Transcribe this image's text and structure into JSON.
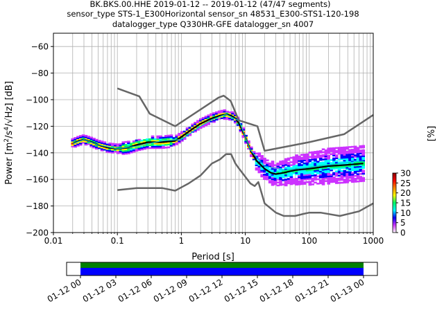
{
  "title_lines": [
    "BK.BKS.00.HHE   2019-01-12 -- 2019-01-12  (47/47 segments)",
    "sensor_type STS-1_E300Horizontal sensor_sn 48531_E300-STS1-120-198",
    "datalogger_type Q330HR-GFE datalogger_sn 4007"
  ],
  "chart_data": {
    "type": "heatmap",
    "xlabel": "Period [s]",
    "ylabel": "Power [m^2/s^4/Hz] [dB]",
    "xscale": "log",
    "xlim": [
      0.01,
      1000
    ],
    "ylim": [
      -200,
      -50
    ],
    "x_ticks": [
      0.01,
      0.1,
      1,
      10,
      100,
      1000
    ],
    "x_tick_labels": [
      "0.01",
      "0.1",
      "1",
      "10",
      "100",
      "1000"
    ],
    "y_ticks": [
      -200,
      -180,
      -160,
      -140,
      -120,
      -100,
      -80,
      -60
    ],
    "y_tick_labels": [
      "−200",
      "−180",
      "−160",
      "−140",
      "−120",
      "−100",
      "−80",
      "−60"
    ],
    "grid": true,
    "colorbar": {
      "label": "[%]",
      "range": [
        0,
        30
      ],
      "ticks": [
        0,
        5,
        10,
        15,
        20,
        25,
        30
      ],
      "tick_labels": [
        "0",
        "5",
        "10",
        "15",
        "20",
        "25",
        "30"
      ],
      "colormap": [
        "#ffffff",
        "#cc33ff",
        "#0000ff",
        "#00ffff",
        "#00ff66",
        "#ffff00",
        "#ff8800",
        "#ff0000",
        "#880000"
      ]
    },
    "series": [
      {
        "x": [
          0.02,
          0.025,
          0.03,
          0.04,
          0.05,
          0.07,
          0.1,
          0.15,
          0.2,
          0.3,
          0.5,
          0.8,
          1.0,
          1.5,
          2.0,
          3.0,
          4.0,
          5.0,
          6.0,
          7.0,
          8.0,
          10.0,
          12.0,
          15.0,
          20.0,
          25.0,
          30.0,
          40.0,
          60.0,
          100.0,
          200.0,
          400.0,
          700.0
        ],
        "y": [
          -133,
          -131,
          -130,
          -132,
          -134,
          -136,
          -137,
          -136,
          -134,
          -132,
          -132,
          -131,
          -128,
          -122,
          -118,
          -114,
          -112,
          -111,
          -112,
          -114,
          -118,
          -128,
          -138,
          -146,
          -152,
          -155,
          -156,
          -155,
          -153,
          -152,
          -150,
          -149,
          -148
        ],
        "color": "#000000"
      },
      {
        "x": [
          0.02,
          0.03,
          0.05,
          0.1,
          0.2,
          0.5,
          1.0,
          2.0,
          3.0,
          5.0,
          8.0,
          12.0,
          20.0,
          40.0,
          100.0,
          300.0,
          700.0
        ],
        "y": [
          -133,
          -130,
          -134,
          -137,
          -135,
          -131,
          -130,
          -120,
          -115,
          -111,
          -116,
          -138,
          -150,
          -153,
          -151,
          -148,
          -146
        ],
        "color": "#00bcd4"
      },
      {
        "x": [
          0.1,
          0.22,
          0.32,
          0.8,
          3.8,
          4.6,
          5.9,
          7.9,
          15.5,
          20.0,
          100.0,
          350.0,
          1000.0
        ],
        "y": [
          -91.5,
          -97.5,
          -110.5,
          -120,
          -98.5,
          -97,
          -101,
          -115.5,
          -120,
          -138.5,
          -132,
          -126,
          -111.5
        ],
        "color": "#666666"
      },
      {
        "x": [
          0.1,
          0.2,
          0.5,
          0.8,
          1.0,
          1.3,
          2.0,
          3.0,
          4.0,
          5.0,
          6.0,
          7.0,
          8.0,
          10.0,
          12.0,
          14.0,
          16.0,
          20.0,
          30.0,
          40.0,
          60.0,
          80.0,
          100.0,
          150.0,
          300.0,
          600.0,
          1000.0
        ],
        "y": [
          -168,
          -166.5,
          -166.5,
          -168.5,
          -166,
          -163,
          -157,
          -148,
          -145,
          -141,
          -141,
          -148,
          -152,
          -158,
          -163,
          -165,
          -162,
          -178,
          -185,
          -187.5,
          -187.5,
          -186,
          -185,
          -185,
          -187.5,
          -184,
          -178
        ],
        "color": "#666666"
      }
    ],
    "time_axis": {
      "tick_labels": [
        "01-12 00",
        "01-12 03",
        "01-12 06",
        "01-12 09",
        "01-12 12",
        "01-12 15",
        "01-12 18",
        "01-12 21",
        "01-13 00"
      ],
      "hours": [
        0,
        3,
        6,
        9,
        12,
        15,
        18,
        21,
        24
      ],
      "coverage_hours": [
        0,
        24
      ],
      "coverage_colors": [
        "#008000",
        "#0000ff"
      ]
    }
  }
}
